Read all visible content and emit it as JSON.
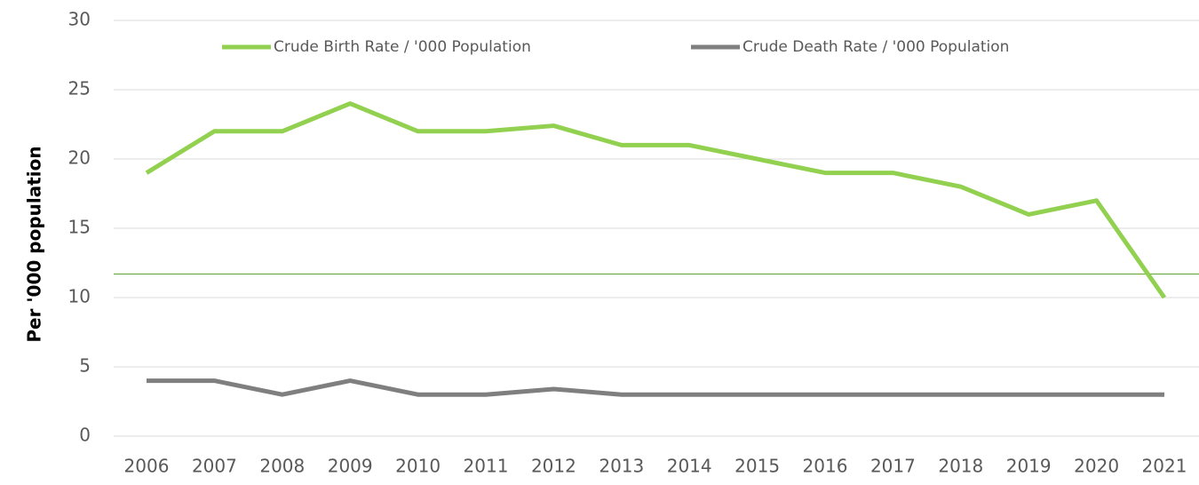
{
  "chart_data": {
    "type": "line",
    "y_label": "Per '000 population",
    "categories": [
      "2006",
      "2007",
      "2008",
      "2009",
      "2010",
      "2011",
      "2012",
      "2013",
      "2014",
      "2015",
      "2016",
      "2017",
      "2018",
      "2019",
      "2020",
      "2021"
    ],
    "series": [
      {
        "name": "Crude Birth Rate / '000 Population",
        "color": "#92d050",
        "values": [
          19,
          22,
          22,
          24,
          22,
          22,
          22.4,
          21,
          21,
          20,
          19,
          19,
          18,
          16,
          17,
          10
        ]
      },
      {
        "name": "Crude Death Rate / '000 Population",
        "color": "#7f7f7f",
        "values": [
          4,
          4,
          3,
          4,
          3,
          3,
          3.4,
          3,
          3,
          3,
          3,
          3,
          3,
          3,
          3,
          3
        ]
      }
    ],
    "reference_line": {
      "value": 11.7,
      "color": "#70ad47"
    },
    "ylim": [
      0,
      30
    ],
    "yticks": [
      0,
      5,
      10,
      15,
      20,
      25,
      30
    ],
    "grid": true,
    "legend": "top"
  }
}
